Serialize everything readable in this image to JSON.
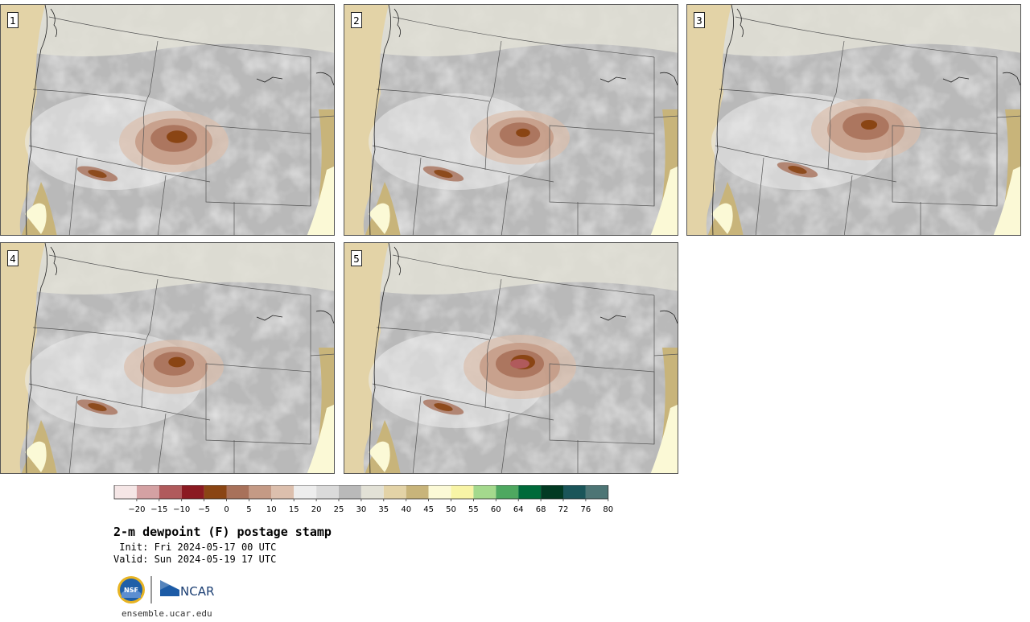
{
  "panels": [
    {
      "label": "1"
    },
    {
      "label": "2"
    },
    {
      "label": "3"
    },
    {
      "label": "4"
    },
    {
      "label": "5"
    }
  ],
  "colorbar": {
    "colors": [
      "#f5e6e6",
      "#d4a1a3",
      "#b05a5c",
      "#8b1a22",
      "#8a4514",
      "#a8715a",
      "#c49a85",
      "#dcbfad",
      "#ededed",
      "#dadada",
      "#b9b9b9",
      "#e2e1d6",
      "#e3d3a7",
      "#c8b47a",
      "#fbf9d6",
      "#f8f4a6",
      "#a4d98d",
      "#4ea860",
      "#006a3a",
      "#023a23",
      "#1a5559",
      "#4d7575"
    ],
    "tick_labels": [
      "−20",
      "−15",
      "−10",
      "−5",
      "0",
      "5",
      "10",
      "15",
      "20",
      "25",
      "30",
      "35",
      "40",
      "45",
      "50",
      "55",
      "60",
      "64",
      "68",
      "72",
      "76",
      "80"
    ]
  },
  "info": {
    "title": "2-m dewpoint (F) postage stamp",
    "init": " Init: Fri 2024-05-17 00 UTC",
    "valid": "Valid: Sun 2024-05-19 17 UTC"
  },
  "logos": {
    "nsf": "NSF",
    "ncar": "NCAR"
  },
  "footer": {
    "url": "ensemble.ucar.edu"
  }
}
